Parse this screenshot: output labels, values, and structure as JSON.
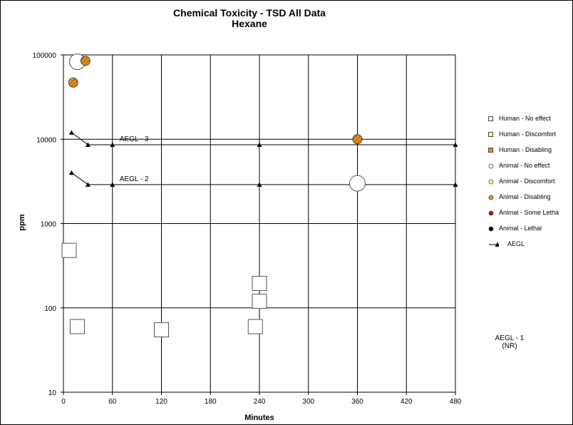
{
  "chart_data": {
    "type": "scatter",
    "title": "Chemical Toxicity - TSD All Data",
    "subtitle": "Hexane",
    "xlabel": "Minutes",
    "ylabel": "ppm",
    "xlim": [
      0,
      480
    ],
    "ylim": [
      10,
      100000
    ],
    "yscale": "log",
    "x_ticks": [
      0,
      60,
      120,
      180,
      240,
      300,
      360,
      420,
      480
    ],
    "x_tick_labels": [
      "0",
      "60",
      "120",
      "180",
      "240",
      "300",
      "360",
      "420",
      "480"
    ],
    "y_ticks": [
      10,
      100,
      1000,
      10000,
      100000
    ],
    "y_tick_labels": [
      "10",
      "100",
      "1000",
      "10000",
      "100000"
    ],
    "grid": true,
    "legend_position": "right",
    "series": [
      {
        "name": "Human - No effect",
        "marker": "square",
        "color": "#ffffff",
        "points": [
          [
            7,
            480
          ],
          [
            17,
            60
          ],
          [
            120,
            55
          ],
          [
            235,
            60
          ],
          [
            240,
            120
          ],
          [
            240,
            195
          ]
        ]
      },
      {
        "name": "Human - Discomfort",
        "marker": "square",
        "color": "#ffff99",
        "points": []
      },
      {
        "name": "Human - Disabling",
        "marker": "square",
        "color": "#e8901c",
        "points": []
      },
      {
        "name": "Animal - No effect",
        "marker": "circle",
        "color": "#ffffff",
        "points": [
          [
            17,
            83000
          ],
          [
            360,
            3000
          ]
        ]
      },
      {
        "name": "Animal - Discomfort",
        "marker": "circle",
        "color": "#ffff99",
        "points": []
      },
      {
        "name": "Animal - Disabling",
        "marker": "circle-hatched",
        "color": "#e8901c",
        "points": [
          [
            12,
            47000
          ],
          [
            27,
            85000
          ],
          [
            360,
            10000
          ]
        ]
      },
      {
        "name": "Animal - Some Letha",
        "marker": "circle",
        "color": "#dd0000",
        "points": []
      },
      {
        "name": "Animal - Lethal",
        "marker": "circle",
        "color": "#000000",
        "points": []
      },
      {
        "name": "AEGL",
        "marker": "triangle-line",
        "color": "#000000",
        "lines": [
          {
            "label": "AEGL - 3",
            "points": [
              [
                10,
                12000
              ],
              [
                30,
                8600
              ],
              [
                60,
                8600
              ],
              [
                240,
                8600
              ],
              [
                480,
                8600
              ]
            ]
          },
          {
            "label": "AEGL - 2",
            "points": [
              [
                10,
                4000
              ],
              [
                30,
                2900
              ],
              [
                60,
                2900
              ],
              [
                240,
                2900
              ],
              [
                480,
                2900
              ]
            ]
          }
        ]
      }
    ],
    "annotations": [
      "AEGL - 3",
      "AEGL - 2",
      "AEGL - 1",
      "(NR)"
    ]
  }
}
